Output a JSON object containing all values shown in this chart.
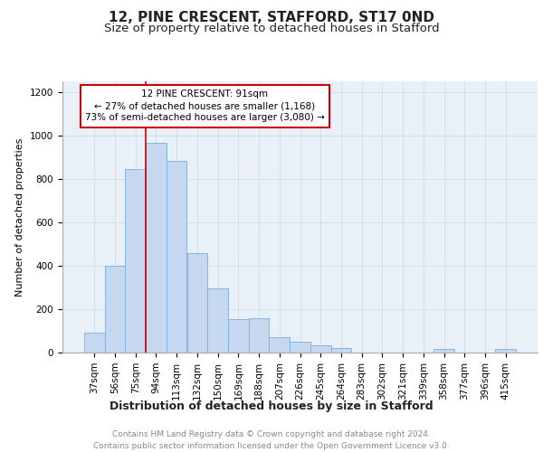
{
  "title1": "12, PINE CRESCENT, STAFFORD, ST17 0ND",
  "title2": "Size of property relative to detached houses in Stafford",
  "xlabel": "Distribution of detached houses by size in Stafford",
  "ylabel": "Number of detached properties",
  "categories": [
    "37sqm",
    "56sqm",
    "75sqm",
    "94sqm",
    "113sqm",
    "132sqm",
    "150sqm",
    "169sqm",
    "188sqm",
    "207sqm",
    "226sqm",
    "245sqm",
    "264sqm",
    "283sqm",
    "302sqm",
    "321sqm",
    "339sqm",
    "358sqm",
    "377sqm",
    "396sqm",
    "415sqm"
  ],
  "values": [
    90,
    400,
    845,
    965,
    885,
    460,
    295,
    155,
    160,
    70,
    50,
    35,
    20,
    0,
    0,
    0,
    0,
    15,
    0,
    0,
    15
  ],
  "bar_color": "#c5d8f0",
  "bar_edge_color": "#7aaed6",
  "vline_color": "#cc0000",
  "annotation_text": "12 PINE CRESCENT: 91sqm\n← 27% of detached houses are smaller (1,168)\n73% of semi-detached houses are larger (3,080) →",
  "annotation_box_color": "#cc0000",
  "ylim": [
    0,
    1250
  ],
  "yticks": [
    0,
    200,
    400,
    600,
    800,
    1000,
    1200
  ],
  "grid_color": "#c8d8e8",
  "background_color": "#eaf0f8",
  "footer_text": "Contains HM Land Registry data © Crown copyright and database right 2024.\nContains public sector information licensed under the Open Government Licence v3.0.",
  "title1_fontsize": 11,
  "title2_fontsize": 9.5,
  "xlabel_fontsize": 9,
  "ylabel_fontsize": 8,
  "tick_fontsize": 7.5,
  "annot_fontsize": 7.5,
  "footer_fontsize": 6.5
}
